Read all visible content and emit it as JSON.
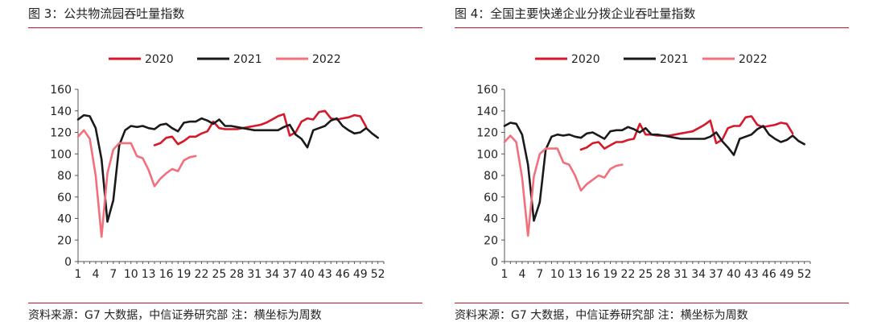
{
  "page": {
    "accent": "#c4161c"
  },
  "panels": [
    {
      "title": "图 3：公共物流园吞吐量指数",
      "source": "资料来源：G7 大数据，中信证券研究部 注：横坐标为周数",
      "chart_data": {
        "type": "line",
        "title": "图 3：公共物流园吞吐量指数",
        "xlabel": "",
        "ylabel": "",
        "xlim": [
          1,
          53
        ],
        "ylim": [
          0,
          160
        ],
        "yticks": [
          0,
          20,
          40,
          60,
          80,
          100,
          120,
          140,
          160
        ],
        "xticks": [
          1,
          4,
          7,
          10,
          13,
          16,
          19,
          22,
          25,
          28,
          31,
          34,
          37,
          40,
          43,
          46,
          49,
          52
        ],
        "grid": false,
        "legend": "top",
        "series": [
          {
            "name": "2020",
            "color": "#d7182a",
            "x_start": 14,
            "values": [
              108,
              110,
              115,
              116,
              109,
              112,
              116,
              116,
              119,
              121,
              130,
              124,
              123,
              123,
              123,
              124,
              125,
              126,
              127,
              129,
              132,
              135,
              137,
              117,
              120,
              130,
              133,
              132,
              139,
              140,
              133,
              132,
              133,
              134,
              136,
              135,
              125
            ]
          },
          {
            "name": "2021",
            "color": "#1a1a1a",
            "x_start": 1,
            "values": [
              132,
              136,
              135,
              124,
              95,
              37,
              57,
              108,
              122,
              126,
              125,
              126,
              124,
              123,
              127,
              128,
              124,
              121,
              129,
              130,
              130,
              133,
              131,
              128,
              132,
              126,
              126,
              125,
              124,
              123,
              122,
              122,
              122,
              122,
              122,
              125,
              127,
              118,
              114,
              106,
              122,
              124,
              126,
              131,
              133,
              126,
              122,
              119,
              120,
              124,
              119,
              115
            ]
          },
          {
            "name": "2022",
            "color": "#f2707c",
            "x_start": 1,
            "values": [
              116,
              122,
              114,
              80,
              23,
              82,
              104,
              110,
              110,
              110,
              98,
              96,
              85,
              70,
              77,
              82,
              86,
              84,
              94,
              97,
              98
            ]
          }
        ]
      }
    },
    {
      "title": "图 4：全国主要快递企业分拨企业吞吐量指数",
      "source": "资料来源：G7 大数据，中信证券研究部 注：横坐标为周数",
      "chart_data": {
        "type": "line",
        "title": "图 4：全国主要快递企业分拨企业吞吐量指数",
        "xlabel": "",
        "ylabel": "",
        "xlim": [
          1,
          53
        ],
        "ylim": [
          0,
          160
        ],
        "yticks": [
          0,
          20,
          40,
          60,
          80,
          100,
          120,
          140,
          160
        ],
        "xticks": [
          1,
          4,
          7,
          10,
          13,
          16,
          19,
          22,
          25,
          28,
          31,
          34,
          37,
          40,
          43,
          46,
          49,
          52
        ],
        "grid": false,
        "legend": "top",
        "series": [
          {
            "name": "2020",
            "color": "#d7182a",
            "x_start": 14,
            "values": [
              104,
              106,
              110,
              111,
              105,
              108,
              111,
              111,
              113,
              114,
              128,
              118,
              118,
              117,
              117,
              117,
              118,
              119,
              120,
              121,
              124,
              127,
              131,
              110,
              113,
              124,
              126,
              126,
              134,
              135,
              127,
              125,
              126,
              127,
              129,
              128,
              119
            ]
          },
          {
            "name": "2021",
            "color": "#1a1a1a",
            "x_start": 1,
            "values": [
              126,
              129,
              128,
              118,
              90,
              38,
              55,
              104,
              116,
              118,
              117,
              118,
              116,
              115,
              119,
              120,
              117,
              114,
              121,
              122,
              122,
              125,
              123,
              120,
              124,
              118,
              118,
              117,
              116,
              115,
              114,
              114,
              114,
              114,
              114,
              116,
              120,
              112,
              106,
              99,
              114,
              116,
              118,
              123,
              126,
              118,
              114,
              111,
              113,
              117,
              112,
              109
            ]
          },
          {
            "name": "2022",
            "color": "#f2707c",
            "x_start": 1,
            "values": [
              111,
              117,
              111,
              78,
              24,
              79,
              100,
              105,
              105,
              105,
              92,
              90,
              80,
              66,
              72,
              76,
              80,
              78,
              86,
              89,
              90
            ]
          }
        ]
      }
    }
  ]
}
